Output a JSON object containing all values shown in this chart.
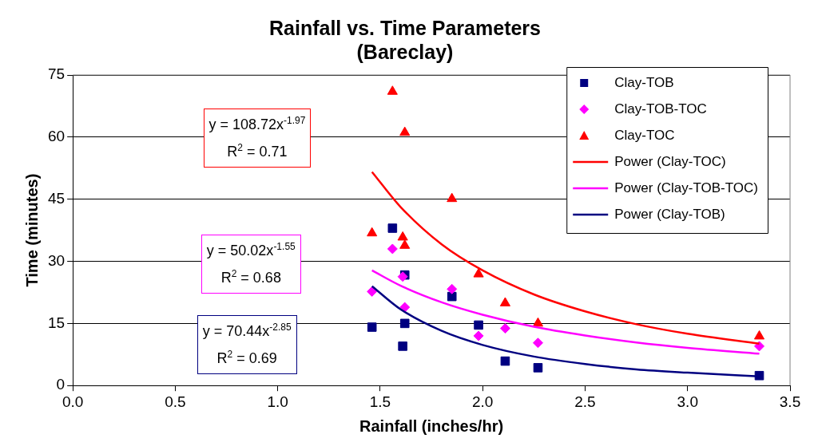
{
  "chart_data": {
    "type": "scatter",
    "title": "Rainfall vs. Time Parameters\n(Bareclay)",
    "xlabel": "Rainfall (inches/hr)",
    "ylabel": "Time (minutes)",
    "xlim": [
      0,
      3.5
    ],
    "xticks": [
      {
        "value": 0,
        "label": "0.0"
      },
      0.5,
      {
        "value": 1,
        "label": "1.0"
      },
      1.5,
      {
        "value": 2,
        "label": "2.0"
      },
      2.5,
      {
        "value": 3,
        "label": "3.0"
      },
      3.5
    ],
    "ylim": [
      0,
      75
    ],
    "yticks": [
      0,
      15,
      30,
      45,
      60,
      75
    ],
    "grid": "y",
    "legend": "top right",
    "series": [
      {
        "name": "Clay-TOB",
        "marker": "square",
        "color": "#000080",
        "x": [
          1.46,
          1.56,
          1.61,
          1.62,
          1.62,
          1.85,
          1.98,
          2.11,
          2.27,
          3.35
        ],
        "values": [
          14.1,
          38.0,
          9.5,
          26.7,
          15.0,
          21.5,
          14.6,
          5.9,
          4.3,
          2.4
        ]
      },
      {
        "name": "Clay-TOB-TOC",
        "marker": "diamond",
        "color": "#ff00ff",
        "x": [
          1.46,
          1.56,
          1.61,
          1.62,
          1.85,
          1.98,
          2.11,
          2.27,
          3.35
        ],
        "values": [
          22.7,
          33.0,
          26.3,
          18.9,
          23.3,
          12.0,
          13.8,
          10.3,
          9.5
        ]
      },
      {
        "name": "Clay-TOC",
        "marker": "triangle",
        "color": "#ff0000",
        "x": [
          1.46,
          1.56,
          1.61,
          1.62,
          1.62,
          1.85,
          1.98,
          2.11,
          2.27,
          3.35
        ],
        "values": [
          36.8,
          71.0,
          35.8,
          61.1,
          33.8,
          45.1,
          26.9,
          19.9,
          15.0,
          11.9
        ]
      },
      {
        "name": "Power (Clay-TOC)",
        "type": "line",
        "marker": "none",
        "line_style": "solid",
        "color": "#ff0000",
        "x": [
          1.46,
          1.6,
          1.8,
          2.0,
          2.25,
          2.5,
          2.75,
          3.0,
          3.35
        ],
        "values": [
          51.6,
          43.1,
          34.1,
          27.8,
          22.0,
          17.9,
          14.8,
          12.5,
          10.1
        ]
      },
      {
        "name": "Power (Clay-TOB-TOC)",
        "type": "line",
        "marker": "none",
        "line_style": "solid",
        "color": "#ff00ff",
        "x": [
          1.46,
          1.6,
          1.8,
          2.0,
          2.25,
          2.5,
          2.75,
          3.0,
          3.35
        ],
        "values": [
          27.8,
          24.1,
          20.1,
          17.1,
          14.2,
          12.1,
          10.4,
          9.1,
          7.7
        ]
      },
      {
        "name": "Power (Clay-TOB)",
        "type": "line",
        "marker": "none",
        "line_style": "solid",
        "color": "#000080",
        "x": [
          1.46,
          1.6,
          1.8,
          2.0,
          2.25,
          2.5,
          2.75,
          3.0,
          3.35
        ],
        "values": [
          24.0,
          18.4,
          13.2,
          9.8,
          7.0,
          5.2,
          3.9,
          3.1,
          2.2
        ]
      }
    ],
    "annotations": [
      "y = 108.72x$^{-1.97}$",
      "R$^{2}$ = 0.71",
      "y = 50.02x$^{-1.55}$",
      "R$^{2}$ = 0.68",
      "y = 70.44x$^{-2.85}$",
      "R$^{2}$ = 0.69"
    ]
  }
}
